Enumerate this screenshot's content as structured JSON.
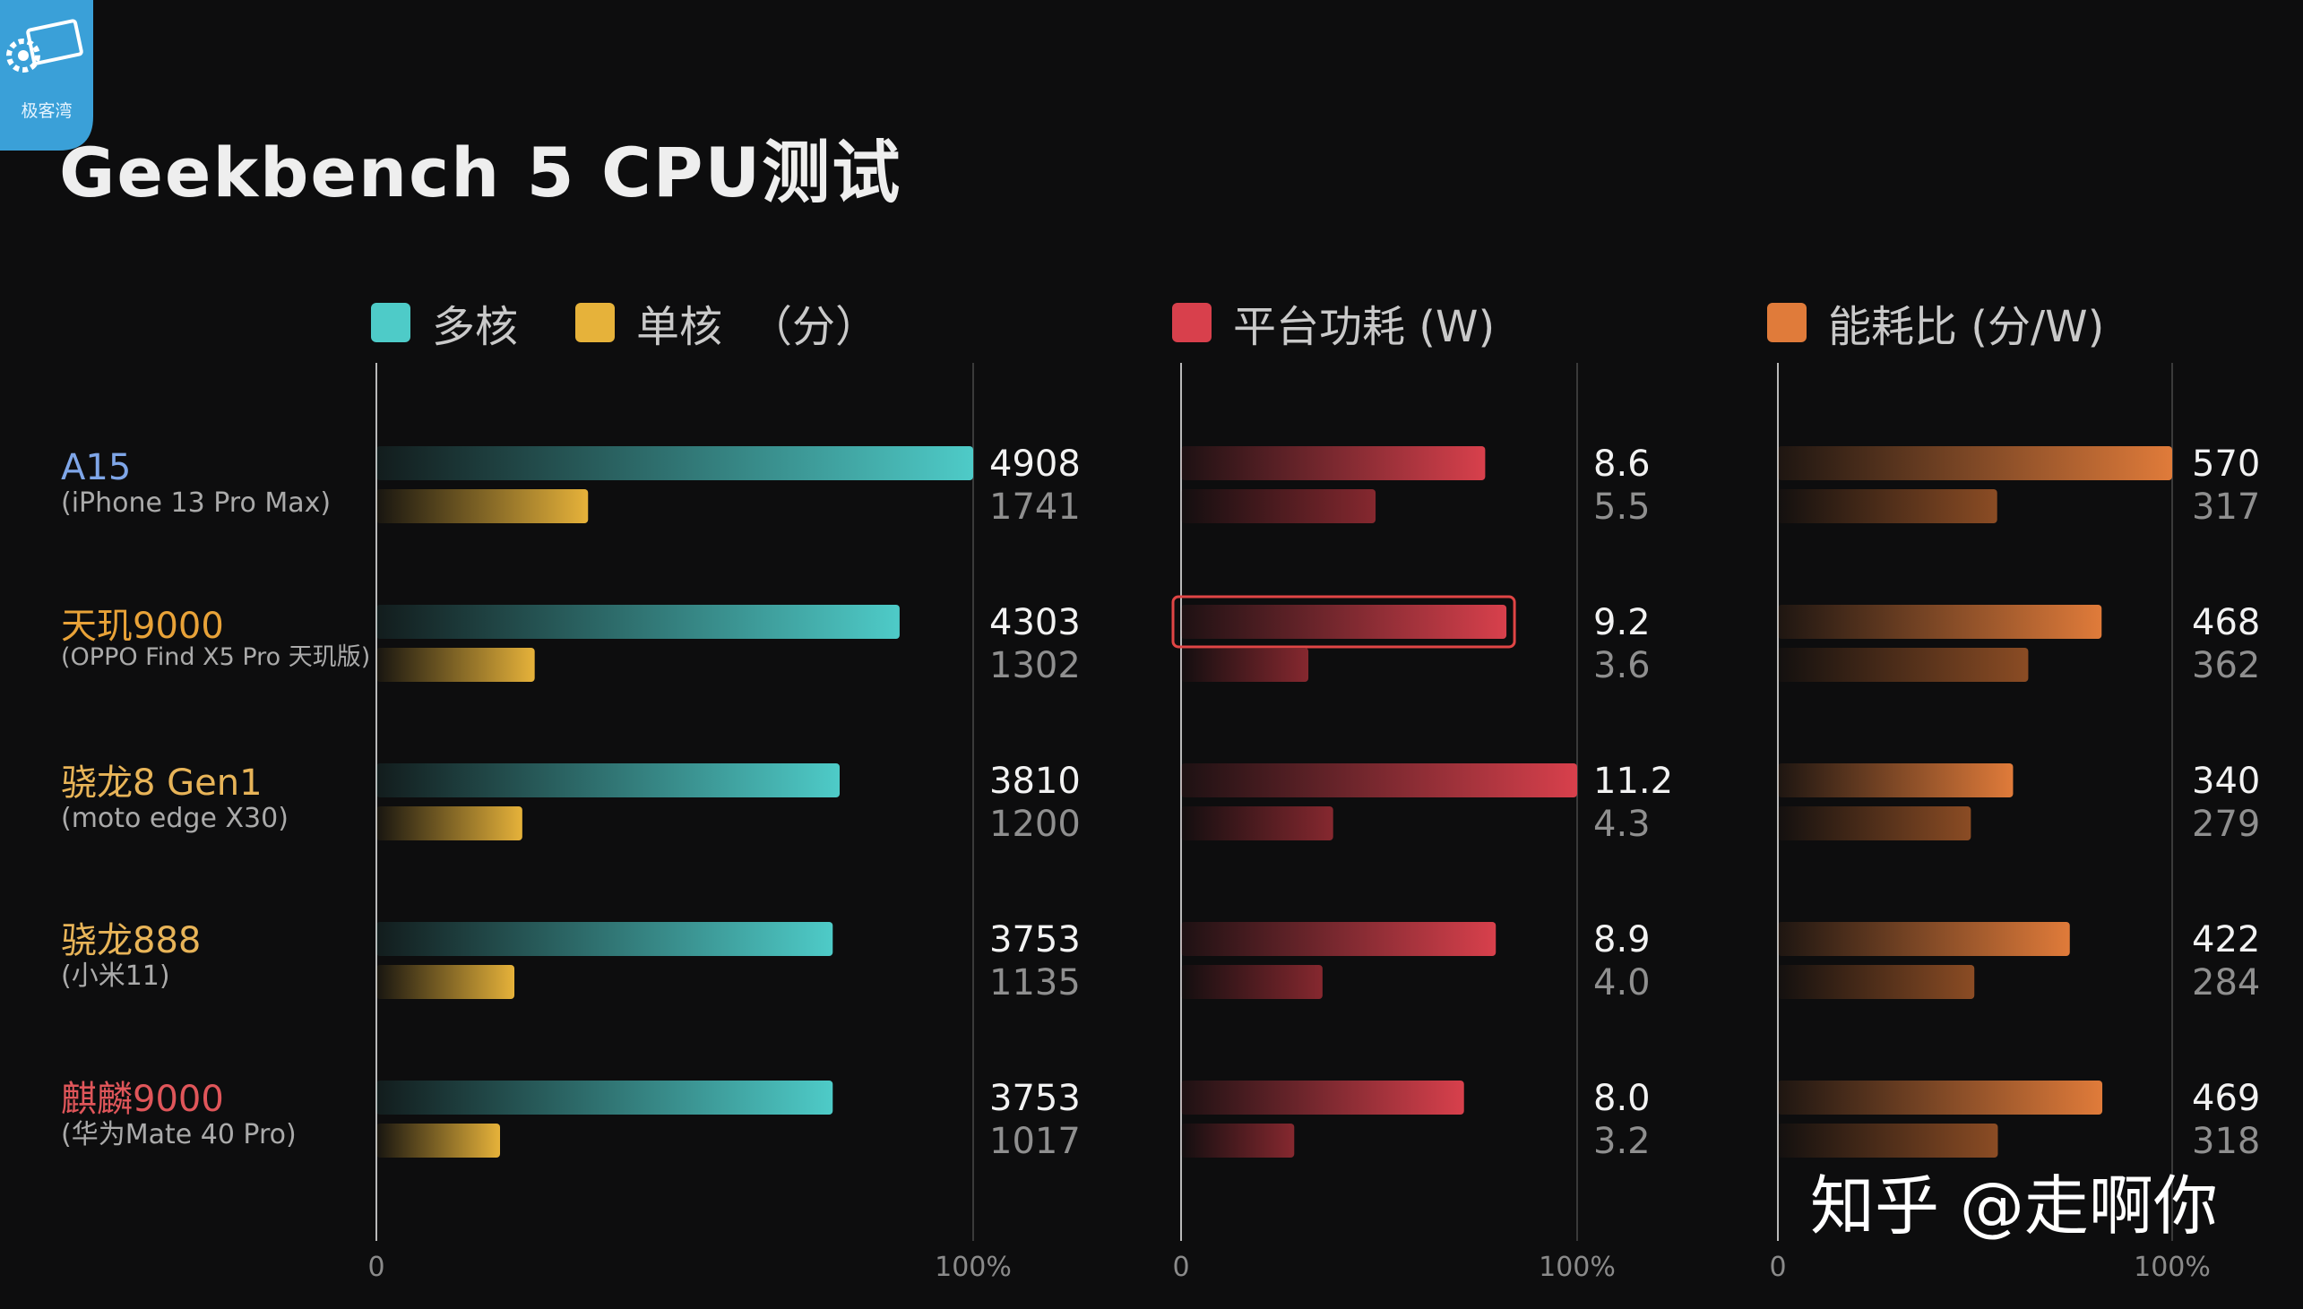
{
  "title": "Geekbench 5 CPU测试",
  "logo": {
    "text": "极客湾",
    "icon": "gear-chip-icon"
  },
  "watermark": "知乎 @走啊你",
  "legends": [
    {
      "label": "多核",
      "color": "#4ecbc8"
    },
    {
      "label": "单核",
      "color": "#e6b23a"
    },
    {
      "label": "（分）"
    },
    {
      "label": "平台功耗 (W)",
      "color": "#d8404c"
    },
    {
      "label": "能耗比 (分/W)",
      "color": "#e07b3a"
    }
  ],
  "devices": [
    {
      "name": "A15",
      "sub": "(iPhone 13 Pro Max)",
      "color": "#7fa6e8"
    },
    {
      "name": "天玑9000",
      "sub": "(OPPO Find X5 Pro 天玑版)",
      "color": "#e8a238"
    },
    {
      "name": "骁龙8 Gen1",
      "sub": "(moto edge X30)",
      "color": "#e8b458"
    },
    {
      "name": "骁龙888",
      "sub": "(小米11)",
      "color": "#e8b458"
    },
    {
      "name": "麒麟9000",
      "sub": "(华为Mate 40 Pro)",
      "color": "#e0565a"
    }
  ],
  "chart_data": [
    {
      "type": "bar",
      "orientation": "horizontal",
      "categories": [
        "A15",
        "天玑9000",
        "骁龙8 Gen1",
        "骁龙888",
        "麒麟9000"
      ],
      "series": [
        {
          "name": "多核",
          "values": [
            4908,
            4303,
            3810,
            3753,
            3753
          ],
          "color": "#4ecbc8"
        },
        {
          "name": "单核",
          "values": [
            1741,
            1302,
            1200,
            1135,
            1017
          ],
          "color": "#e6b23a"
        }
      ],
      "xlim": [
        0,
        4908
      ],
      "tick_labels": [
        "0",
        "100%"
      ]
    },
    {
      "type": "bar",
      "orientation": "horizontal",
      "categories": [
        "A15",
        "天玑9000",
        "骁龙8 Gen1",
        "骁龙888",
        "麒麟9000"
      ],
      "series": [
        {
          "values": [
            8.6,
            9.2,
            11.2,
            8.9,
            8.0
          ],
          "labels": [
            "8.6",
            "9.2",
            "11.2",
            "8.9",
            "8.0"
          ],
          "color": "#d8404c"
        },
        {
          "values": [
            5.5,
            3.6,
            4.3,
            4.0,
            3.2
          ],
          "labels": [
            "5.5",
            "3.6",
            "4.3",
            "4.0",
            "3.2"
          ],
          "color": "#d8404c"
        }
      ],
      "xlim": [
        0,
        11.2
      ],
      "tick_labels": [
        "0",
        "100%"
      ],
      "highlight": {
        "series": 0,
        "category": "天玑9000",
        "color": "#e04545"
      }
    },
    {
      "type": "bar",
      "orientation": "horizontal",
      "categories": [
        "A15",
        "天玑9000",
        "骁龙8 Gen1",
        "骁龙888",
        "麒麟9000"
      ],
      "series": [
        {
          "values": [
            570,
            468,
            340,
            422,
            469
          ],
          "color": "#e07b3a"
        },
        {
          "values": [
            317,
            362,
            279,
            284,
            318
          ],
          "color": "#e07b3a"
        }
      ],
      "xlim": [
        0,
        570
      ],
      "tick_labels": [
        "0",
        "100%"
      ]
    }
  ]
}
